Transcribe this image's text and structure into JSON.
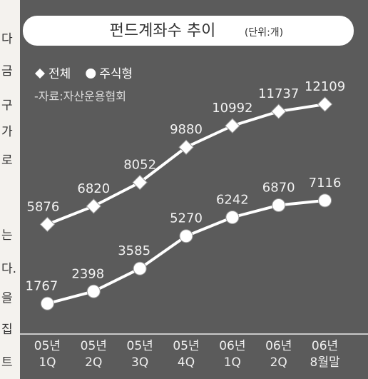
{
  "margin_text": [
    "다",
    "금",
    "구",
    "가",
    "로",
    "는",
    "다.",
    "을",
    "집",
    "트"
  ],
  "chart_data": {
    "type": "line",
    "title": "펀드계좌수 추이",
    "subtitle": "(단위:개)",
    "source": "-자료:자산운용협회",
    "categories": [
      "05년\n1Q",
      "05년\n2Q",
      "05년\n3Q",
      "05년\n4Q",
      "06년\n1Q",
      "06년\n2Q",
      "06년\n8월말"
    ],
    "series": [
      {
        "name": "전체",
        "marker": "diamond",
        "color": "#ffffff",
        "values": [
          5876,
          6820,
          8052,
          9880,
          10992,
          11737,
          12109
        ]
      },
      {
        "name": "주식형",
        "marker": "circle",
        "color": "#ffffff",
        "values": [
          1767,
          2398,
          3585,
          5270,
          6242,
          6870,
          7116
        ]
      }
    ],
    "ylim": [
      0,
      13000
    ]
  }
}
